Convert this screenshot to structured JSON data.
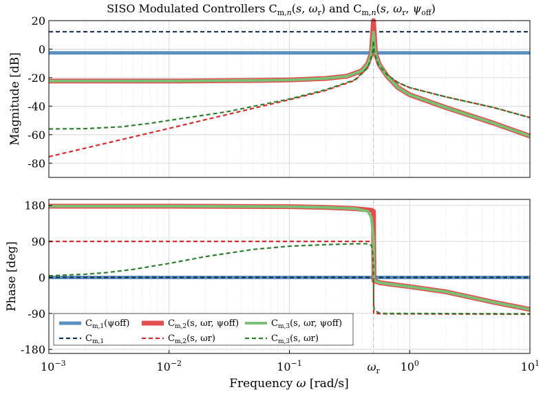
{
  "chart_data": {
    "type": "line",
    "title": "SISO Modulated Controllers C_{m,n}(s, ω_r) and C_{m,n}(s, ω_r, ψ_off)",
    "title_text": "SISO Modulated Controllers Cm,n(s, ωr) and Cm,n(s, ωr, ψoff)",
    "x": {
      "label": "Frequency ω [rad/s]",
      "scale": "log",
      "lim": [
        0.001,
        10
      ],
      "major_ticks": [
        0.001,
        0.01,
        0.1,
        1,
        10
      ],
      "tick_labels": [
        "10−3",
        "10−2",
        "10−1",
        "100",
        "101"
      ],
      "extra_tick": {
        "value": 0.5,
        "label": "ωr"
      }
    },
    "magnitude": {
      "ylabel": "Magnitude [dB]",
      "ylim": [
        -90,
        20
      ],
      "ticks": [
        20,
        0,
        -20,
        -40,
        -60,
        -80
      ],
      "tick_labels": [
        "20",
        "0",
        "-20",
        "-40",
        "-60",
        "-80"
      ]
    },
    "phase": {
      "ylabel": "Phase [deg]",
      "ylim": [
        -190,
        195
      ],
      "ticks": [
        180,
        90,
        0,
        -90,
        -180
      ],
      "tick_labels": [
        "180",
        "90",
        "0",
        "-90",
        "-180"
      ]
    },
    "series": [
      {
        "key": "cm1_psi",
        "name": "Cm,1(ψoff)",
        "color": "#5b8fbf",
        "style": "solid",
        "width": 5,
        "mag": [
          [
            0.001,
            -2.6
          ],
          [
            10,
            -2.6
          ]
        ],
        "phase": [
          [
            0.001,
            0
          ],
          [
            10,
            0
          ]
        ]
      },
      {
        "key": "cm1",
        "name": "Cm,1",
        "color": "#17304e",
        "style": "dashed",
        "width": 2.2,
        "mag": [
          [
            0.001,
            12.2
          ],
          [
            10,
            12.2
          ]
        ],
        "phase": [
          [
            0.001,
            0
          ],
          [
            10,
            0
          ]
        ]
      },
      {
        "key": "cm2_psi",
        "name": "Cm,2(s, ωr, ψoff)",
        "color": "#e04e4e",
        "style": "solid",
        "width": 7,
        "mag": [
          [
            0.001,
            -22.4
          ],
          [
            0.01,
            -22.4
          ],
          [
            0.05,
            -22.0
          ],
          [
            0.1,
            -21.6
          ],
          [
            0.2,
            -20.6
          ],
          [
            0.3,
            -19.0
          ],
          [
            0.4,
            -15.2
          ],
          [
            0.45,
            -10.0
          ],
          [
            0.48,
            -3.0
          ],
          [
            0.5,
            20.0
          ],
          [
            0.52,
            -3.0
          ],
          [
            0.56,
            -11.0
          ],
          [
            0.65,
            -19.0
          ],
          [
            0.8,
            -27.0
          ],
          [
            1,
            -32.0
          ],
          [
            2,
            -41.0
          ],
          [
            5,
            -52.0
          ],
          [
            10,
            -61.0
          ]
        ],
        "phase": [
          [
            0.001,
            178
          ],
          [
            0.01,
            178
          ],
          [
            0.1,
            177
          ],
          [
            0.2,
            175
          ],
          [
            0.35,
            172
          ],
          [
            0.48,
            168
          ],
          [
            0.5,
            165
          ],
          [
            0.505,
            -8
          ],
          [
            0.56,
            -13
          ],
          [
            0.7,
            -17
          ],
          [
            1,
            -23
          ],
          [
            2,
            -36
          ],
          [
            5,
            -62
          ],
          [
            10,
            -80
          ]
        ]
      },
      {
        "key": "cm2",
        "name": "Cm,2(s, ωr)",
        "color": "#d42a2a",
        "style": "dashed",
        "width": 2.2,
        "mag": [
          [
            0.001,
            -75.5
          ],
          [
            0.003,
            -66.0
          ],
          [
            0.01,
            -55.6
          ],
          [
            0.03,
            -46.0
          ],
          [
            0.1,
            -35.5
          ],
          [
            0.2,
            -29.0
          ],
          [
            0.35,
            -22.0
          ],
          [
            0.45,
            -13.0
          ],
          [
            0.49,
            -3.0
          ],
          [
            0.5,
            5.0
          ],
          [
            0.51,
            -3.0
          ],
          [
            0.55,
            -11.0
          ],
          [
            0.65,
            -18.0
          ],
          [
            0.8,
            -23.5
          ],
          [
            1,
            -27.0
          ],
          [
            2,
            -33.5
          ],
          [
            5,
            -41.0
          ],
          [
            10,
            -48.0
          ]
        ],
        "phase": [
          [
            0.001,
            90
          ],
          [
            0.3,
            90
          ],
          [
            0.49,
            90
          ],
          [
            0.5,
            89
          ],
          [
            0.502,
            -90
          ],
          [
            0.6,
            -91
          ],
          [
            10,
            -92
          ]
        ]
      },
      {
        "key": "cm3_psi",
        "name": "Cm,3(s, ωr, ψoff)",
        "color": "#7bc074",
        "style": "solid",
        "width": 4,
        "mag": [
          [
            0.001,
            -22.4
          ],
          [
            0.01,
            -22.4
          ],
          [
            0.05,
            -22.0
          ],
          [
            0.1,
            -21.6
          ],
          [
            0.2,
            -20.6
          ],
          [
            0.3,
            -19.0
          ],
          [
            0.4,
            -15.2
          ],
          [
            0.45,
            -10.0
          ],
          [
            0.48,
            -3.0
          ],
          [
            0.5,
            12.0
          ],
          [
            0.52,
            -3.0
          ],
          [
            0.56,
            -11.0
          ],
          [
            0.65,
            -19.0
          ],
          [
            0.8,
            -27.0
          ],
          [
            1,
            -32.0
          ],
          [
            2,
            -41.0
          ],
          [
            5,
            -52.0
          ],
          [
            10,
            -61.0
          ]
        ],
        "phase": [
          [
            0.001,
            178
          ],
          [
            0.01,
            178
          ],
          [
            0.1,
            177
          ],
          [
            0.2,
            175
          ],
          [
            0.35,
            172
          ],
          [
            0.45,
            165
          ],
          [
            0.48,
            150
          ],
          [
            0.5,
            100
          ],
          [
            0.505,
            -8
          ],
          [
            0.56,
            -13
          ],
          [
            0.7,
            -17
          ],
          [
            1,
            -23
          ],
          [
            2,
            -36
          ],
          [
            5,
            -62
          ],
          [
            10,
            -80
          ]
        ]
      },
      {
        "key": "cm3",
        "name": "Cm,3(s, ωr)",
        "color": "#2d7d2d",
        "style": "dashed",
        "width": 2.2,
        "mag": [
          [
            0.001,
            -56.0
          ],
          [
            0.002,
            -55.8
          ],
          [
            0.004,
            -54.5
          ],
          [
            0.007,
            -52.0
          ],
          [
            0.01,
            -50.0
          ],
          [
            0.03,
            -44.0
          ],
          [
            0.1,
            -35.0
          ],
          [
            0.2,
            -28.5
          ],
          [
            0.35,
            -21.5
          ],
          [
            0.45,
            -13.0
          ],
          [
            0.49,
            -3.0
          ],
          [
            0.5,
            6.0
          ],
          [
            0.51,
            -3.0
          ],
          [
            0.55,
            -11.0
          ],
          [
            0.65,
            -18.0
          ],
          [
            0.8,
            -23.5
          ],
          [
            1,
            -27.0
          ],
          [
            2,
            -33.5
          ],
          [
            5,
            -41.0
          ],
          [
            10,
            -48.0
          ]
        ],
        "phase": [
          [
            0.001,
            4
          ],
          [
            0.002,
            8
          ],
          [
            0.003,
            12
          ],
          [
            0.005,
            20
          ],
          [
            0.01,
            35
          ],
          [
            0.02,
            52
          ],
          [
            0.05,
            70
          ],
          [
            0.1,
            78
          ],
          [
            0.2,
            82
          ],
          [
            0.35,
            84
          ],
          [
            0.45,
            84
          ],
          [
            0.48,
            80
          ],
          [
            0.49,
            70
          ],
          [
            0.5,
            30
          ],
          [
            0.502,
            -70
          ],
          [
            0.51,
            -82
          ],
          [
            0.55,
            -88
          ],
          [
            0.6,
            -90
          ],
          [
            10,
            -91
          ]
        ]
      }
    ],
    "legend": {
      "placement": "bottom-left of phase plot",
      "entries": [
        {
          "key": "cm1_psi",
          "base": "C",
          "sub": "m,1",
          "arg": "(ψoff)"
        },
        {
          "key": "cm2_psi",
          "base": "C",
          "sub": "m,2",
          "arg": "(s, ωr, ψoff)"
        },
        {
          "key": "cm3_psi",
          "base": "C",
          "sub": "m,3",
          "arg": "(s, ωr, ψoff)"
        },
        {
          "key": "cm1",
          "base": "C",
          "sub": "m,1",
          "arg": ""
        },
        {
          "key": "cm2",
          "base": "C",
          "sub": "m,2",
          "arg": "(s, ωr)"
        },
        {
          "key": "cm3",
          "base": "C",
          "sub": "m,3",
          "arg": "(s, ωr)"
        }
      ]
    },
    "grid": true
  }
}
